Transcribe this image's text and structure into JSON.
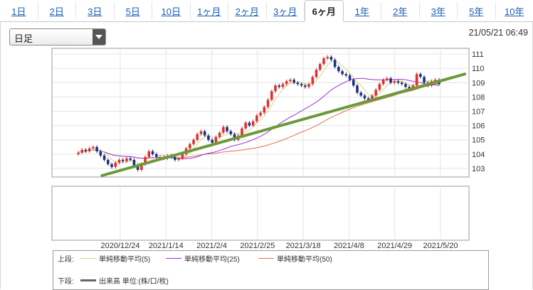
{
  "tabs": [
    {
      "label": "1日",
      "active": false
    },
    {
      "label": "2日",
      "active": false
    },
    {
      "label": "3日",
      "active": false
    },
    {
      "label": "5日",
      "active": false
    },
    {
      "label": "10日",
      "active": false
    },
    {
      "label": "1ヶ月",
      "active": false
    },
    {
      "label": "2ヶ月",
      "active": false
    },
    {
      "label": "3ヶ月",
      "active": false
    },
    {
      "label": "6ヶ月",
      "active": true
    },
    {
      "label": "1年",
      "active": false
    },
    {
      "label": "2年",
      "active": false
    },
    {
      "label": "3年",
      "active": false
    },
    {
      "label": "5年",
      "active": false
    },
    {
      "label": "10年",
      "active": false
    }
  ],
  "select": {
    "value": "日足"
  },
  "timestamp": "21/05/21 06:49",
  "legend": {
    "upper_label": "上段:",
    "lower_label": "下段:",
    "items": [
      {
        "name": "単純移動平均(5)",
        "color": "#d6d67a"
      },
      {
        "name": "単純移動平均(25)",
        "color": "#9b30d9"
      },
      {
        "name": "単純移動平均(50)",
        "color": "#e07050"
      }
    ],
    "volume": {
      "name": "出来高 単位:(株/口/枚)",
      "color": "#666666"
    }
  },
  "chart_data": {
    "type": "candlestick",
    "x_tick_labels": [
      "2020/12/24",
      "2021/1/14",
      "2021/2/4",
      "2021/2/25",
      "2021/3/18",
      "2021/4/8",
      "2021/4/29",
      "2021/5/20"
    ],
    "y_ticks": [
      103,
      104,
      105,
      106,
      107,
      108,
      109,
      110,
      111
    ],
    "ylim": [
      102.4,
      111.4
    ],
    "grid": true,
    "colors": {
      "up": "#e03030",
      "down": "#203080",
      "trendline": "#6a9a3a"
    },
    "close": [
      104.1,
      104.3,
      104.2,
      104.4,
      104.5,
      104.2,
      103.9,
      103.6,
      103.3,
      103.1,
      103.4,
      103.6,
      103.5,
      103.7,
      103.6,
      103.2,
      102.9,
      103.3,
      103.8,
      104.2,
      104.0,
      103.8,
      103.8,
      103.7,
      103.9,
      103.8,
      103.6,
      103.7,
      104.0,
      104.4,
      104.7,
      105.0,
      105.4,
      105.6,
      105.3,
      105.0,
      104.8,
      105.2,
      105.5,
      105.9,
      105.6,
      105.4,
      105.0,
      105.3,
      105.8,
      106.2,
      106.0,
      106.3,
      106.7,
      106.9,
      107.3,
      107.8,
      108.4,
      108.8,
      108.7,
      108.9,
      109.1,
      109.2,
      109.0,
      108.9,
      108.8,
      108.7,
      108.9,
      109.4,
      109.9,
      110.3,
      110.7,
      110.8,
      110.6,
      110.1,
      109.8,
      109.6,
      109.5,
      109.2,
      108.8,
      108.3,
      108.1,
      107.9,
      107.8,
      108.1,
      108.5,
      108.9,
      109.2,
      109.3,
      109.0,
      109.1,
      109.0,
      108.9,
      108.7,
      108.6,
      108.8,
      109.6,
      109.4,
      109.0,
      108.8,
      109.1,
      109.2,
      108.9
    ],
    "trendline": [
      {
        "x": 0.12,
        "y": 102.5
      },
      {
        "x": 0.99,
        "y": 109.6
      }
    ]
  }
}
